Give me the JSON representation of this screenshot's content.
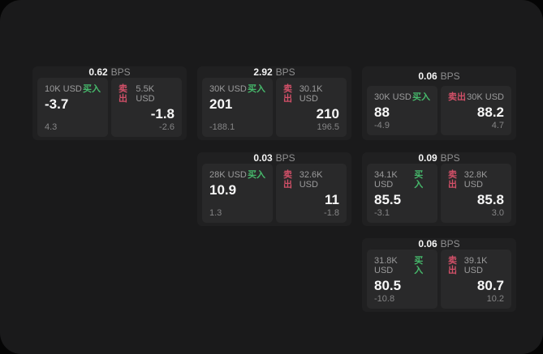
{
  "app": {
    "background": "#050505",
    "surface": "#1a1a1b",
    "card_bg": "#202021",
    "panel_bg": "#29292a",
    "buy_color": "#46b96b",
    "sell_color": "#d25068",
    "bps_unit": "BPS",
    "buy_label": "买入",
    "sell_label": "卖出"
  },
  "cards": [
    {
      "bps": "0.62",
      "col": 1,
      "row": 1,
      "buy_amount": "10K USD",
      "buy_price": "-3.7",
      "buy_sub": "4.3",
      "sell_amount": "5.5K USD",
      "sell_price": "-1.8",
      "sell_sub": "-2.6"
    },
    {
      "bps": "2.92",
      "col": 2,
      "row": 1,
      "buy_amount": "30K USD",
      "buy_price": "201",
      "buy_sub": "-188.1",
      "sell_amount": "30.1K USD",
      "sell_price": "210",
      "sell_sub": "196.5"
    },
    {
      "bps": "0.06",
      "col": 3,
      "row": 1,
      "buy_amount": "30K USD",
      "buy_price": "88",
      "buy_sub": "-4.9",
      "sell_amount": "30K USD",
      "sell_price": "88.2",
      "sell_sub": "4.7"
    },
    {
      "bps": "0.03",
      "col": 2,
      "row": 2,
      "buy_amount": "28K USD",
      "buy_price": "10.9",
      "buy_sub": "1.3",
      "sell_amount": "32.6K USD",
      "sell_price": "11",
      "sell_sub": "-1.8"
    },
    {
      "bps": "0.09",
      "col": 3,
      "row": 2,
      "buy_amount": "34.1K USD",
      "buy_price": "85.5",
      "buy_sub": "-3.1",
      "sell_amount": "32.8K USD",
      "sell_price": "85.8",
      "sell_sub": "3.0"
    },
    {
      "bps": "0.06",
      "col": 3,
      "row": 3,
      "buy_amount": "31.8K USD",
      "buy_price": "80.5",
      "buy_sub": "-10.8",
      "sell_amount": "39.1K USD",
      "sell_price": "80.7",
      "sell_sub": "10.2"
    }
  ]
}
